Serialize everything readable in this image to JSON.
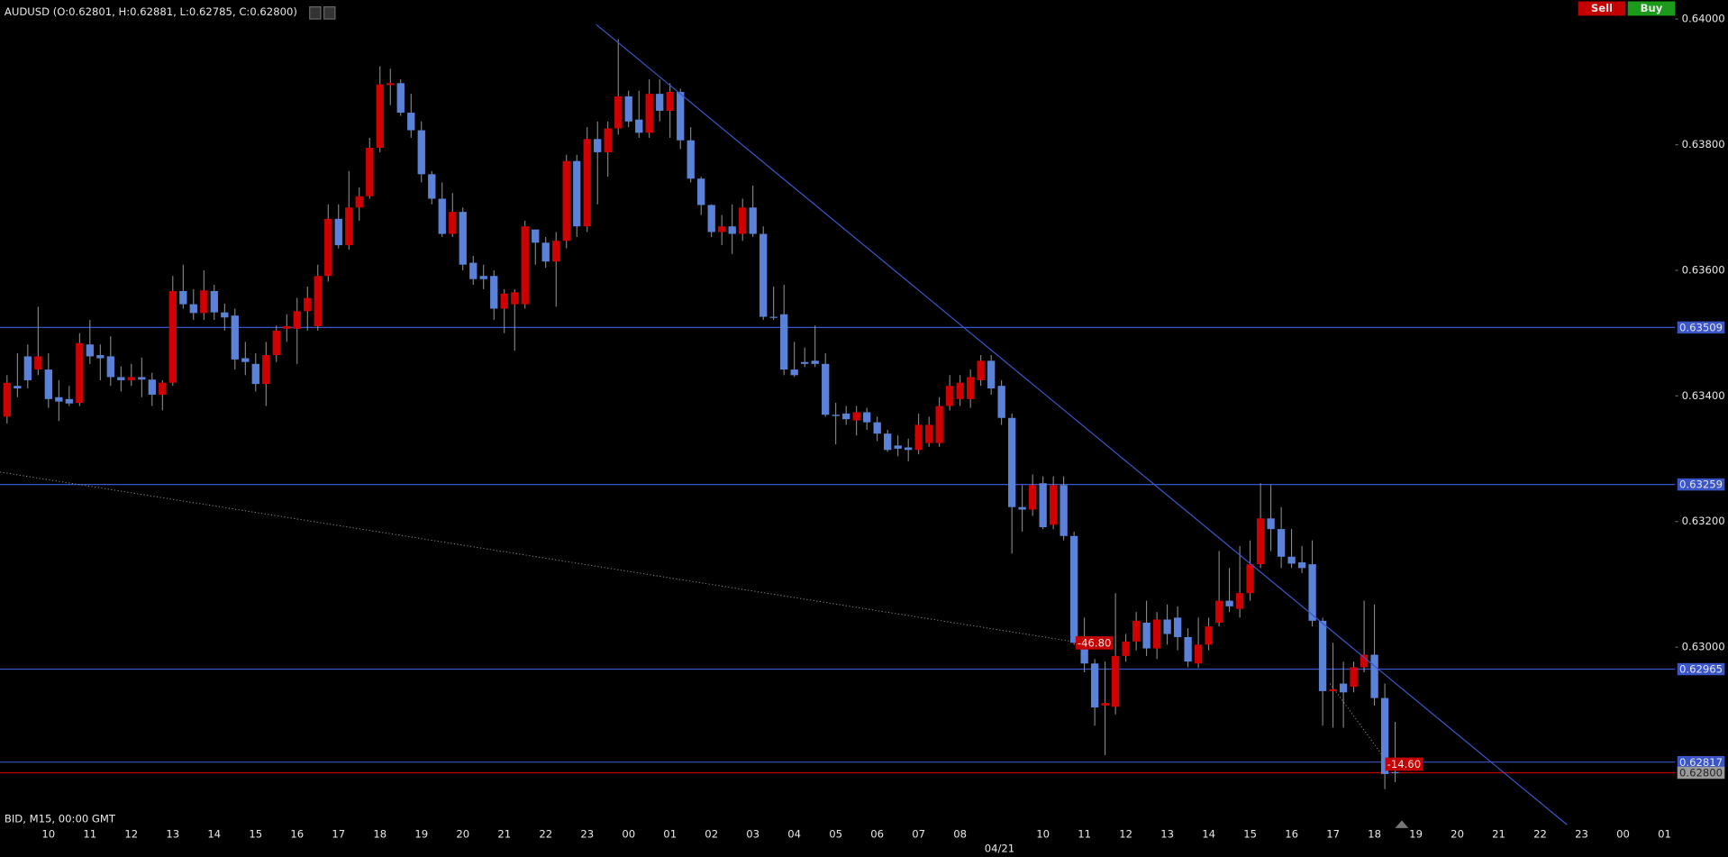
{
  "toolbar": {
    "buttons": [
      "Sell",
      "Buy"
    ]
  },
  "chart_data": {
    "type": "candlestick",
    "title": "AUDUSD (O:0.62801, H:0.62881, L:0.62785, C:0.62800)",
    "footer": "BID, M15, 00:00 GMT",
    "date_label": "04/21",
    "categories": [
      "10",
      "11",
      "12",
      "13",
      "14",
      "15",
      "16",
      "17",
      "18",
      "19",
      "20",
      "21",
      "22",
      "23",
      "00",
      "01",
      "02",
      "03",
      "04",
      "05",
      "06",
      "07",
      "08",
      null,
      "10",
      "11",
      "12",
      "13",
      "14",
      "15",
      "16",
      "17",
      "18",
      "19",
      "20",
      "21",
      "22",
      "23",
      "00",
      "01"
    ],
    "up_color": "#d10000",
    "down_color": "#5a82d8",
    "ylim": [
      0.6274,
      0.6403
    ],
    "yticks": [
      {
        "value": 0.64,
        "label": "0.64000"
      },
      {
        "value": 0.638,
        "label": "0.63800"
      },
      {
        "value": 0.636,
        "label": "0.63600"
      },
      {
        "value": 0.634,
        "label": "0.63400"
      },
      {
        "value": 0.632,
        "label": "0.63200"
      },
      {
        "value": 0.63,
        "label": "0.63000"
      }
    ],
    "levels": [
      {
        "value": 0.63509,
        "label": "0.63509"
      },
      {
        "value": 0.63259,
        "label": "0.63259"
      },
      {
        "value": 0.62965,
        "label": "0.62965"
      },
      {
        "value": 0.62817,
        "label": "0.62817"
      }
    ],
    "level_color": "#3a55c8",
    "current_price": {
      "value": 0.628,
      "label": "0.62800"
    },
    "current_color": "#c40000",
    "order_labels": [
      "-46.80",
      "-14.60"
    ],
    "candles": {
      "open": [
        0.63367,
        0.63416,
        0.63463,
        0.63442,
        0.63442,
        0.63398,
        0.63395,
        0.63389,
        0.63482,
        0.63465,
        0.63463,
        0.6343,
        0.63425,
        0.6343,
        0.63426,
        0.63402,
        0.63421,
        0.63567,
        0.63546,
        0.63532,
        0.63567,
        0.63533,
        0.63528,
        0.6346,
        0.63451,
        0.63419,
        0.63465,
        0.63507,
        0.63507,
        0.63535,
        0.63511,
        0.63591,
        0.63682,
        0.6364,
        0.637,
        0.63718,
        0.63795,
        0.63895,
        0.63898,
        0.63851,
        0.63823,
        0.63753,
        0.63714,
        0.63658,
        0.63693,
        0.63612,
        0.63591,
        0.63591,
        0.63539,
        0.63546,
        0.63546,
        0.63665,
        0.63644,
        0.63614,
        0.63647,
        0.63774,
        0.6367,
        0.63809,
        0.63788,
        0.63826,
        0.63877,
        0.6384,
        0.63819,
        0.63881,
        0.63854,
        0.63884,
        0.63807,
        0.63746,
        0.63704,
        0.63661,
        0.6367,
        0.63658,
        0.637,
        0.63658,
        0.63526,
        0.6353,
        0.63442,
        0.63454,
        0.63456,
        0.63451,
        0.6337,
        0.63372,
        0.63361,
        0.63374,
        0.63358,
        0.6334,
        0.63321,
        0.63318,
        0.63314,
        0.63325,
        0.63325,
        0.63384,
        0.63395,
        0.63395,
        0.63425,
        0.63456,
        0.63416,
        0.63365,
        0.63223,
        0.63219,
        0.63261,
        0.63195,
        0.63258,
        0.63177,
        0.63004,
        0.62974,
        0.62907,
        0.62905,
        0.62986,
        0.63009,
        0.63039,
        0.62998,
        0.63044,
        0.63047,
        0.63016,
        0.62974,
        0.63004,
        0.63039,
        0.63074,
        0.63061,
        0.63086,
        0.63132,
        0.63205,
        0.63188,
        0.63144,
        0.63135,
        0.63132,
        0.63042,
        0.6293,
        0.62942,
        0.62937,
        0.62968,
        0.62988,
        0.62919,
        0.62801
      ],
      "high": [
        0.63433,
        0.63468,
        0.63482,
        0.63542,
        0.63468,
        0.63425,
        0.63416,
        0.635,
        0.63521,
        0.63482,
        0.63495,
        0.63447,
        0.63451,
        0.63461,
        0.63437,
        0.63425,
        0.63591,
        0.63609,
        0.6357,
        0.636,
        0.63577,
        0.63547,
        0.63539,
        0.63486,
        0.63468,
        0.63486,
        0.63512,
        0.6353,
        0.63556,
        0.63574,
        0.63609,
        0.63705,
        0.63705,
        0.63758,
        0.63732,
        0.63811,
        0.63925,
        0.63921,
        0.63904,
        0.63881,
        0.63837,
        0.63758,
        0.6374,
        0.63723,
        0.637,
        0.63623,
        0.63609,
        0.636,
        0.6357,
        0.6357,
        0.63679,
        0.63658,
        0.63653,
        0.63661,
        0.63784,
        0.63784,
        0.63828,
        0.63837,
        0.63837,
        0.63968,
        0.63886,
        0.63886,
        0.63904,
        0.63904,
        0.63898,
        0.63889,
        0.63828,
        0.63749,
        0.63705,
        0.63688,
        0.63705,
        0.63714,
        0.63735,
        0.6367,
        0.63574,
        0.63577,
        0.63486,
        0.63477,
        0.63512,
        0.63468,
        0.63389,
        0.63384,
        0.63384,
        0.63381,
        0.63367,
        0.63346,
        0.63337,
        0.63332,
        0.63372,
        0.63367,
        0.63398,
        0.63433,
        0.63433,
        0.63442,
        0.63465,
        0.63465,
        0.63425,
        0.63372,
        0.63258,
        0.63275,
        0.63272,
        0.63272,
        0.63272,
        0.63184,
        0.63047,
        0.62981,
        0.62977,
        0.63086,
        0.63021,
        0.63056,
        0.63074,
        0.63056,
        0.63068,
        0.63065,
        0.6303,
        0.63047,
        0.63047,
        0.63153,
        0.63126,
        0.63161,
        0.6317,
        0.63261,
        0.63258,
        0.63223,
        0.63188,
        0.63161,
        0.6317,
        0.63047,
        0.63007,
        0.62977,
        0.62977,
        0.63074,
        0.63068,
        0.62942,
        0.62881
      ],
      "low": [
        0.63356,
        0.63398,
        0.63412,
        0.63433,
        0.63381,
        0.6336,
        0.63384,
        0.63384,
        0.63451,
        0.63425,
        0.63416,
        0.63407,
        0.63416,
        0.63398,
        0.63384,
        0.63377,
        0.63416,
        0.63539,
        0.63521,
        0.63521,
        0.63521,
        0.63504,
        0.63442,
        0.63433,
        0.63407,
        0.63384,
        0.63454,
        0.63486,
        0.63451,
        0.63504,
        0.63504,
        0.63582,
        0.63635,
        0.63633,
        0.63679,
        0.63714,
        0.63788,
        0.63863,
        0.63846,
        0.63811,
        0.6374,
        0.63705,
        0.63653,
        0.63653,
        0.636,
        0.63577,
        0.6357,
        0.63521,
        0.635,
        0.63472,
        0.63539,
        0.63609,
        0.63604,
        0.63542,
        0.63635,
        0.63653,
        0.63661,
        0.63705,
        0.63749,
        0.63816,
        0.63828,
        0.63811,
        0.63811,
        0.63837,
        0.63811,
        0.63793,
        0.6374,
        0.63688,
        0.63653,
        0.6364,
        0.63626,
        0.63647,
        0.63653,
        0.63521,
        0.63521,
        0.63433,
        0.6343,
        0.63446,
        0.63446,
        0.63367,
        0.63323,
        0.63354,
        0.63337,
        0.63346,
        0.63328,
        0.63311,
        0.63304,
        0.63296,
        0.63307,
        0.63319,
        0.63319,
        0.63377,
        0.63384,
        0.63381,
        0.63416,
        0.63402,
        0.63354,
        0.63149,
        0.63184,
        0.63209,
        0.63188,
        0.63188,
        0.6317,
        0.63004,
        0.6296,
        0.62875,
        0.62828,
        0.62893,
        0.62977,
        0.62995,
        0.62986,
        0.62981,
        0.63004,
        0.62995,
        0.62968,
        0.62967,
        0.62995,
        0.63033,
        0.63056,
        0.63047,
        0.63074,
        0.63126,
        0.63153,
        0.63126,
        0.63126,
        0.63118,
        0.63033,
        0.62875,
        0.62872,
        0.62872,
        0.62928,
        0.6296,
        0.62907,
        0.62774,
        0.62785
      ],
      "close": [
        0.63421,
        0.63412,
        0.63425,
        0.63463,
        0.63395,
        0.63391,
        0.63388,
        0.63484,
        0.63463,
        0.6346,
        0.6343,
        0.63425,
        0.6343,
        0.63426,
        0.63402,
        0.63421,
        0.63567,
        0.63546,
        0.63532,
        0.63568,
        0.63533,
        0.63525,
        0.63458,
        0.63454,
        0.63419,
        0.63465,
        0.63504,
        0.63511,
        0.63535,
        0.63556,
        0.63591,
        0.63682,
        0.6364,
        0.637,
        0.63718,
        0.63795,
        0.63896,
        0.63898,
        0.63851,
        0.63823,
        0.63753,
        0.63714,
        0.63658,
        0.63693,
        0.63609,
        0.63586,
        0.63586,
        0.63539,
        0.63563,
        0.63565,
        0.6367,
        0.63644,
        0.63614,
        0.63647,
        0.63774,
        0.6367,
        0.63809,
        0.63788,
        0.63826,
        0.63877,
        0.63837,
        0.63819,
        0.63881,
        0.63854,
        0.63884,
        0.63807,
        0.63746,
        0.63704,
        0.63661,
        0.6367,
        0.63658,
        0.637,
        0.63658,
        0.63526,
        0.63525,
        0.63442,
        0.63433,
        0.63451,
        0.63451,
        0.6337,
        0.63368,
        0.63363,
        0.63374,
        0.63358,
        0.6334,
        0.63314,
        0.63316,
        0.63314,
        0.63354,
        0.63354,
        0.63384,
        0.63416,
        0.63421,
        0.6343,
        0.63456,
        0.63412,
        0.63365,
        0.63223,
        0.63219,
        0.63258,
        0.63191,
        0.63258,
        0.63177,
        0.63007,
        0.62974,
        0.62904,
        0.62911,
        0.62986,
        0.63009,
        0.63042,
        0.62998,
        0.63044,
        0.63021,
        0.63016,
        0.62977,
        0.63004,
        0.63033,
        0.63074,
        0.63065,
        0.63086,
        0.63132,
        0.63205,
        0.63188,
        0.63144,
        0.63133,
        0.63126,
        0.63042,
        0.6293,
        0.62933,
        0.62928,
        0.62968,
        0.62988,
        0.62919,
        0.62798,
        0.628
      ]
    }
  }
}
